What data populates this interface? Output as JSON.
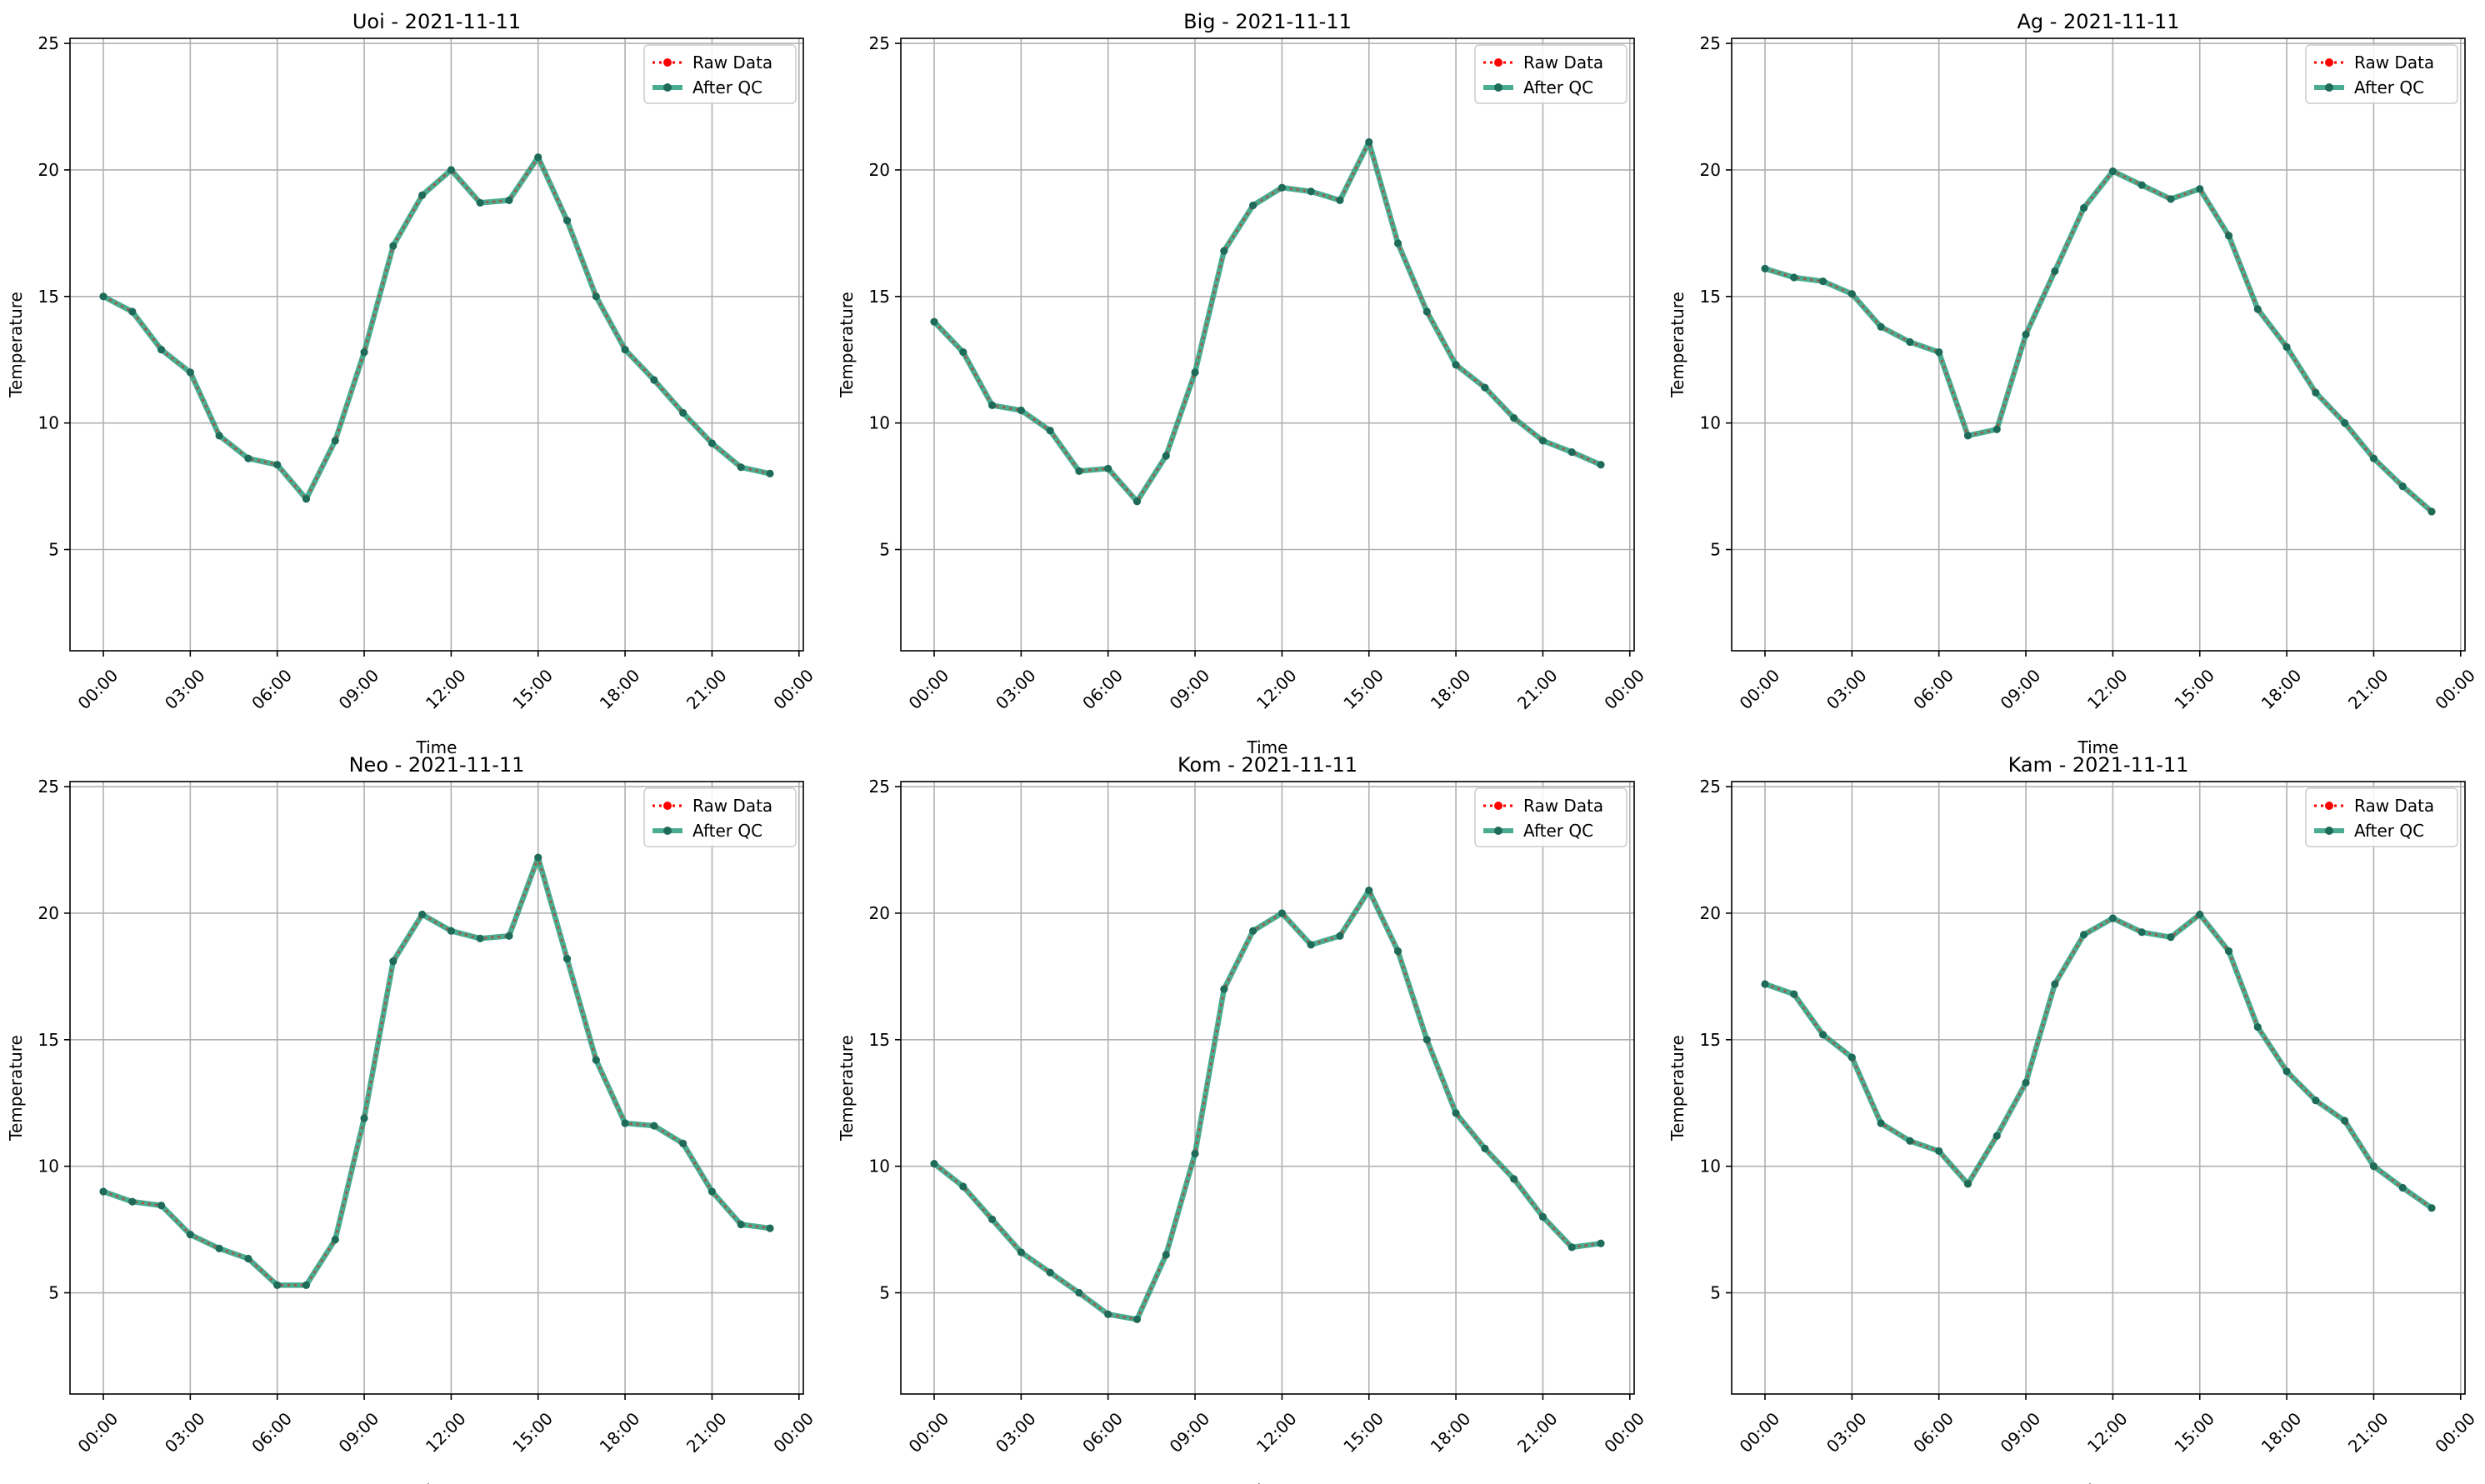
{
  "legend": {
    "raw_label": "Raw Data",
    "qc_label": "After QC"
  },
  "colors": {
    "raw": "#ff0000",
    "qc_line": "#2a9d7c",
    "qc_marker": "#1f6b5a",
    "grid": "#b0b0b0"
  },
  "chart_data": [
    {
      "type": "line",
      "title": "Uoi - 2021-11-11",
      "xlabel": "Time",
      "ylabel": "Temperature",
      "xlim": [
        -1.15,
        24.15
      ],
      "ylim": [
        1,
        25.2
      ],
      "xticks": [
        0,
        3,
        6,
        9,
        12,
        15,
        18,
        21,
        24
      ],
      "xtick_labels": [
        "00:00",
        "03:00",
        "06:00",
        "09:00",
        "12:00",
        "15:00",
        "18:00",
        "21:00",
        "00:00"
      ],
      "yticks": [
        5,
        10,
        15,
        20,
        25
      ],
      "grid": true,
      "legend_position": "top-right",
      "x": [
        0,
        1,
        2,
        3,
        4,
        5,
        6,
        7,
        8,
        9,
        10,
        11,
        12,
        13,
        14,
        15,
        16,
        17,
        18,
        19,
        20,
        21,
        22,
        23
      ],
      "series": [
        {
          "name": "Raw Data",
          "values": [
            15.0,
            14.4,
            12.9,
            12.0,
            9.5,
            8.6,
            8.35,
            7.0,
            9.3,
            12.8,
            17.0,
            19.0,
            20.0,
            18.7,
            18.8,
            20.5,
            18.0,
            15.0,
            12.9,
            11.7,
            10.4,
            9.2,
            8.25,
            8.0
          ]
        },
        {
          "name": "After QC",
          "values": [
            15.0,
            14.4,
            12.9,
            12.0,
            9.5,
            8.6,
            8.35,
            7.0,
            9.3,
            12.8,
            17.0,
            19.0,
            20.0,
            18.7,
            18.8,
            20.5,
            18.0,
            15.0,
            12.9,
            11.7,
            10.4,
            9.2,
            8.25,
            8.0
          ]
        }
      ]
    },
    {
      "type": "line",
      "title": "Big - 2021-11-11",
      "xlabel": "Time",
      "ylabel": "Temperature",
      "xlim": [
        -1.15,
        24.15
      ],
      "ylim": [
        1,
        25.2
      ],
      "xticks": [
        0,
        3,
        6,
        9,
        12,
        15,
        18,
        21,
        24
      ],
      "xtick_labels": [
        "00:00",
        "03:00",
        "06:00",
        "09:00",
        "12:00",
        "15:00",
        "18:00",
        "21:00",
        "00:00"
      ],
      "yticks": [
        5,
        10,
        15,
        20,
        25
      ],
      "grid": true,
      "legend_position": "top-right",
      "x": [
        0,
        1,
        2,
        3,
        4,
        5,
        6,
        7,
        8,
        9,
        10,
        11,
        12,
        13,
        14,
        15,
        16,
        17,
        18,
        19,
        20,
        21,
        22,
        23
      ],
      "series": [
        {
          "name": "Raw Data",
          "values": [
            14.0,
            12.8,
            10.7,
            10.5,
            9.7,
            8.1,
            8.2,
            6.9,
            8.7,
            12.0,
            16.8,
            18.6,
            19.3,
            19.15,
            18.8,
            21.1,
            17.1,
            14.4,
            12.3,
            11.4,
            10.2,
            9.3,
            8.85,
            8.35
          ]
        },
        {
          "name": "After QC",
          "values": [
            14.0,
            12.8,
            10.7,
            10.5,
            9.7,
            8.1,
            8.2,
            6.9,
            8.7,
            12.0,
            16.8,
            18.6,
            19.3,
            19.15,
            18.8,
            21.1,
            17.1,
            14.4,
            12.3,
            11.4,
            10.2,
            9.3,
            8.85,
            8.35
          ]
        }
      ]
    },
    {
      "type": "line",
      "title": "Ag - 2021-11-11",
      "xlabel": "Time",
      "ylabel": "Temperature",
      "xlim": [
        -1.15,
        24.15
      ],
      "ylim": [
        1,
        25.2
      ],
      "xticks": [
        0,
        3,
        6,
        9,
        12,
        15,
        18,
        21,
        24
      ],
      "xtick_labels": [
        "00:00",
        "03:00",
        "06:00",
        "09:00",
        "12:00",
        "15:00",
        "18:00",
        "21:00",
        "00:00"
      ],
      "yticks": [
        5,
        10,
        15,
        20,
        25
      ],
      "grid": true,
      "legend_position": "top-right",
      "x": [
        0,
        1,
        2,
        3,
        4,
        5,
        6,
        7,
        8,
        9,
        10,
        11,
        12,
        13,
        14,
        15,
        16,
        17,
        18,
        19,
        20,
        21,
        22,
        23
      ],
      "series": [
        {
          "name": "Raw Data",
          "values": [
            16.1,
            15.75,
            15.6,
            15.1,
            13.8,
            13.2,
            12.8,
            9.5,
            9.75,
            13.5,
            16.0,
            18.5,
            19.95,
            19.4,
            18.85,
            19.25,
            17.4,
            14.5,
            13.0,
            11.2,
            10.0,
            8.6,
            7.5,
            6.5
          ]
        },
        {
          "name": "After QC",
          "values": [
            16.1,
            15.75,
            15.6,
            15.1,
            13.8,
            13.2,
            12.8,
            9.5,
            9.75,
            13.5,
            16.0,
            18.5,
            19.95,
            19.4,
            18.85,
            19.25,
            17.4,
            14.5,
            13.0,
            11.2,
            10.0,
            8.6,
            7.5,
            6.5
          ]
        }
      ]
    },
    {
      "type": "line",
      "title": "Neo - 2021-11-11",
      "xlabel": "Time",
      "ylabel": "Temperature",
      "xlim": [
        -1.15,
        24.15
      ],
      "ylim": [
        1,
        25.2
      ],
      "xticks": [
        0,
        3,
        6,
        9,
        12,
        15,
        18,
        21,
        24
      ],
      "xtick_labels": [
        "00:00",
        "03:00",
        "06:00",
        "09:00",
        "12:00",
        "15:00",
        "18:00",
        "21:00",
        "00:00"
      ],
      "yticks": [
        5,
        10,
        15,
        20,
        25
      ],
      "grid": true,
      "legend_position": "top-right",
      "x": [
        0,
        1,
        2,
        3,
        4,
        5,
        6,
        7,
        8,
        9,
        10,
        11,
        12,
        13,
        14,
        15,
        16,
        17,
        18,
        19,
        20,
        21,
        22,
        23
      ],
      "series": [
        {
          "name": "Raw Data",
          "values": [
            9.0,
            8.6,
            8.45,
            7.3,
            6.75,
            6.35,
            5.3,
            5.3,
            7.1,
            11.9,
            18.1,
            19.95,
            19.3,
            19.0,
            19.1,
            22.2,
            18.2,
            14.2,
            11.7,
            11.6,
            10.9,
            9.0,
            7.7,
            7.55
          ]
        },
        {
          "name": "After QC",
          "values": [
            9.0,
            8.6,
            8.45,
            7.3,
            6.75,
            6.35,
            5.3,
            5.3,
            7.1,
            11.9,
            18.1,
            19.95,
            19.3,
            19.0,
            19.1,
            22.2,
            18.2,
            14.2,
            11.7,
            11.6,
            10.9,
            9.0,
            7.7,
            7.55
          ]
        }
      ]
    },
    {
      "type": "line",
      "title": "Kom - 2021-11-11",
      "xlabel": "Time",
      "ylabel": "Temperature",
      "xlim": [
        -1.15,
        24.15
      ],
      "ylim": [
        1,
        25.2
      ],
      "xticks": [
        0,
        3,
        6,
        9,
        12,
        15,
        18,
        21,
        24
      ],
      "xtick_labels": [
        "00:00",
        "03:00",
        "06:00",
        "09:00",
        "12:00",
        "15:00",
        "18:00",
        "21:00",
        "00:00"
      ],
      "yticks": [
        5,
        10,
        15,
        20,
        25
      ],
      "grid": true,
      "legend_position": "top-right",
      "x": [
        0,
        1,
        2,
        3,
        4,
        5,
        6,
        7,
        8,
        9,
        10,
        11,
        12,
        13,
        14,
        15,
        16,
        17,
        18,
        19,
        20,
        21,
        22,
        23
      ],
      "series": [
        {
          "name": "Raw Data",
          "values": [
            10.1,
            9.2,
            7.9,
            6.6,
            5.8,
            5.0,
            4.15,
            3.95,
            6.5,
            10.5,
            17.0,
            19.3,
            20.0,
            18.75,
            19.1,
            20.9,
            18.5,
            15.0,
            12.1,
            10.7,
            9.5,
            8.0,
            6.8,
            6.95
          ]
        },
        {
          "name": "After QC",
          "values": [
            10.1,
            9.2,
            7.9,
            6.6,
            5.8,
            5.0,
            4.15,
            3.95,
            6.5,
            10.5,
            17.0,
            19.3,
            20.0,
            18.75,
            19.1,
            20.9,
            18.5,
            15.0,
            12.1,
            10.7,
            9.5,
            8.0,
            6.8,
            6.95
          ]
        }
      ]
    },
    {
      "type": "line",
      "title": "Kam - 2021-11-11",
      "xlabel": "Time",
      "ylabel": "Temperature",
      "xlim": [
        -1.15,
        24.15
      ],
      "ylim": [
        1,
        25.2
      ],
      "xticks": [
        0,
        3,
        6,
        9,
        12,
        15,
        18,
        21,
        24
      ],
      "xtick_labels": [
        "00:00",
        "03:00",
        "06:00",
        "09:00",
        "12:00",
        "15:00",
        "18:00",
        "21:00",
        "00:00"
      ],
      "yticks": [
        5,
        10,
        15,
        20,
        25
      ],
      "grid": true,
      "legend_position": "top-right",
      "x": [
        0,
        1,
        2,
        3,
        4,
        5,
        6,
        7,
        8,
        9,
        10,
        11,
        12,
        13,
        14,
        15,
        16,
        17,
        18,
        19,
        20,
        21,
        22,
        23
      ],
      "series": [
        {
          "name": "Raw Data",
          "values": [
            17.2,
            16.8,
            15.2,
            14.3,
            11.7,
            11.0,
            10.6,
            9.3,
            11.2,
            13.3,
            17.2,
            19.15,
            19.8,
            19.25,
            19.05,
            19.95,
            18.5,
            15.5,
            13.75,
            12.6,
            11.8,
            10.0,
            9.15,
            8.35
          ]
        },
        {
          "name": "After QC",
          "values": [
            17.2,
            16.8,
            15.2,
            14.3,
            11.7,
            11.0,
            10.6,
            9.3,
            11.2,
            13.3,
            17.2,
            19.15,
            19.8,
            19.25,
            19.05,
            19.95,
            18.5,
            15.5,
            13.75,
            12.6,
            11.8,
            10.0,
            9.15,
            8.35
          ]
        }
      ]
    }
  ]
}
